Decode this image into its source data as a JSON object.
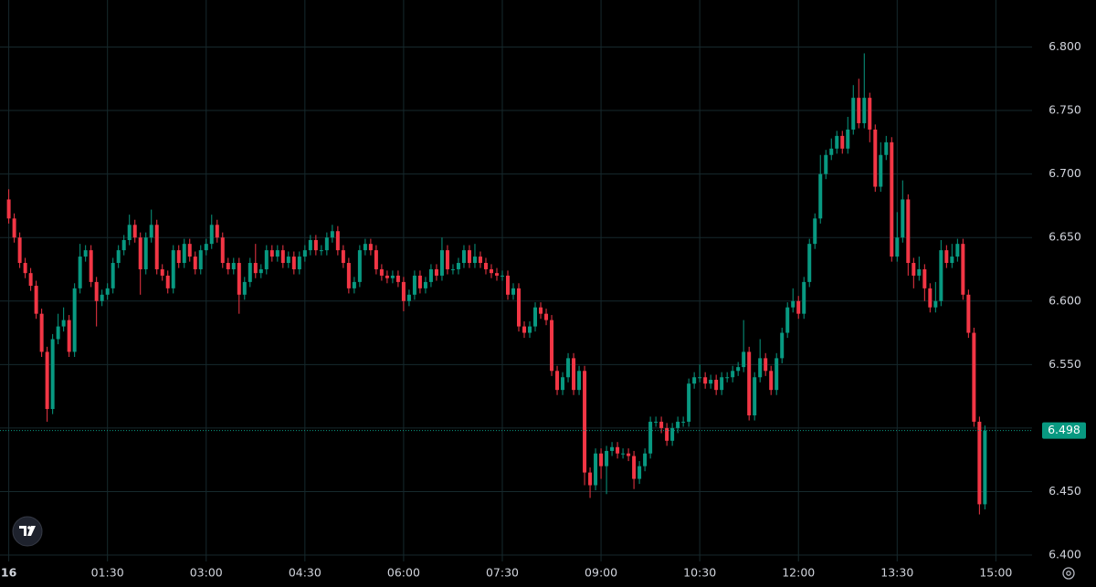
{
  "chart_data": {
    "type": "candlestick",
    "x": [
      0,
      5,
      10,
      15,
      20,
      25,
      30,
      35,
      40,
      45,
      50,
      55,
      60,
      65,
      70,
      75,
      80,
      85,
      90,
      95,
      100,
      105,
      110,
      115,
      120,
      125,
      130,
      135,
      140,
      145,
      150,
      155,
      160,
      165,
      170,
      175,
      180,
      185,
      190,
      195,
      200,
      205,
      210,
      215,
      220,
      225,
      230,
      235,
      240,
      245,
      250,
      255,
      260,
      265,
      270,
      275,
      280,
      285,
      290,
      295,
      300,
      305,
      310,
      315,
      320,
      325,
      330,
      335,
      340,
      345,
      350,
      355,
      360,
      365,
      370,
      375,
      380,
      385,
      390,
      395,
      400,
      405,
      410,
      415,
      420,
      425,
      430,
      435,
      440,
      445,
      450,
      455,
      460,
      465,
      470,
      475,
      480,
      485,
      490,
      495,
      500,
      505,
      510,
      515,
      520,
      525,
      530,
      535,
      540,
      545,
      550,
      555,
      560,
      565,
      570,
      575,
      580,
      585,
      590,
      595,
      600,
      605,
      610,
      615,
      620,
      625,
      630,
      635,
      640,
      645,
      650,
      655,
      660,
      665,
      670,
      675,
      680,
      685,
      690,
      695,
      700,
      705,
      710,
      715,
      720,
      725,
      730,
      735,
      740,
      745,
      750,
      755,
      760,
      765,
      770,
      775,
      780,
      785,
      790,
      795,
      800,
      805,
      810,
      815,
      820,
      825,
      830,
      835,
      840,
      845,
      850,
      855,
      860,
      865,
      870,
      875,
      880,
      885,
      890
    ],
    "open": [
      6.68,
      6.665,
      6.65,
      6.63,
      6.622,
      6.612,
      6.59,
      6.56,
      6.515,
      6.57,
      6.58,
      6.585,
      6.56,
      6.61,
      6.635,
      6.64,
      6.615,
      6.6,
      6.605,
      6.61,
      6.63,
      6.64,
      6.648,
      6.66,
      6.65,
      6.625,
      6.65,
      6.66,
      6.625,
      6.62,
      6.61,
      6.64,
      6.63,
      6.645,
      6.635,
      6.625,
      6.64,
      6.645,
      6.66,
      6.65,
      6.63,
      6.625,
      6.63,
      6.605,
      6.615,
      6.63,
      6.622,
      6.625,
      6.64,
      6.635,
      6.64,
      6.63,
      6.635,
      6.625,
      6.635,
      6.64,
      6.648,
      6.64,
      6.64,
      6.65,
      6.655,
      6.64,
      6.63,
      6.61,
      6.615,
      6.64,
      6.645,
      6.64,
      6.625,
      6.62,
      6.618,
      6.62,
      6.615,
      6.6,
      6.605,
      6.62,
      6.61,
      6.615,
      6.625,
      6.62,
      6.64,
      6.625,
      6.625,
      6.63,
      6.64,
      6.63,
      6.635,
      6.63,
      6.625,
      6.622,
      6.62,
      6.62,
      6.605,
      6.61,
      6.58,
      6.575,
      6.58,
      6.595,
      6.59,
      6.585,
      6.545,
      6.53,
      6.54,
      6.555,
      6.53,
      6.545,
      6.465,
      6.455,
      6.48,
      6.47,
      6.482,
      6.485,
      6.48,
      6.48,
      6.478,
      6.46,
      6.47,
      6.48,
      6.505,
      6.505,
      6.5,
      6.49,
      6.5,
      6.505,
      6.505,
      6.535,
      6.54,
      6.54,
      6.535,
      6.538,
      6.53,
      6.54,
      6.54,
      6.545,
      6.548,
      6.56,
      6.51,
      6.54,
      6.555,
      6.545,
      6.53,
      6.555,
      6.575,
      6.595,
      6.6,
      6.59,
      6.615,
      6.645,
      6.665,
      6.7,
      6.715,
      6.72,
      6.73,
      6.72,
      6.735,
      6.76,
      6.74,
      6.76,
      6.735,
      6.69,
      6.715,
      6.725,
      6.635,
      6.65,
      6.68,
      6.63,
      6.62,
      6.625,
      6.61,
      6.595,
      6.6,
      6.64,
      6.63,
      6.635,
      6.645,
      6.605,
      6.575,
      6.505,
      6.44
    ],
    "high": [
      6.688,
      6.669,
      6.654,
      6.634,
      6.626,
      6.616,
      6.594,
      6.564,
      6.574,
      6.59,
      6.595,
      6.589,
      6.614,
      6.645,
      6.644,
      6.644,
      6.619,
      6.609,
      6.614,
      6.634,
      6.644,
      6.652,
      6.668,
      6.664,
      6.654,
      6.654,
      6.672,
      6.664,
      6.629,
      6.624,
      6.644,
      6.644,
      6.649,
      6.649,
      6.639,
      6.644,
      6.649,
      6.668,
      6.664,
      6.654,
      6.634,
      6.634,
      6.634,
      6.619,
      6.634,
      6.645,
      6.629,
      6.644,
      6.644,
      6.644,
      6.644,
      6.639,
      6.639,
      6.639,
      6.644,
      6.652,
      6.652,
      6.644,
      6.654,
      6.66,
      6.659,
      6.644,
      6.634,
      6.619,
      6.644,
      6.649,
      6.649,
      6.644,
      6.629,
      6.624,
      6.624,
      6.624,
      6.619,
      6.609,
      6.624,
      6.624,
      6.619,
      6.629,
      6.629,
      6.65,
      6.644,
      6.629,
      6.634,
      6.644,
      6.644,
      6.645,
      6.639,
      6.634,
      6.629,
      6.626,
      6.624,
      6.624,
      6.614,
      6.614,
      6.584,
      6.584,
      6.599,
      6.599,
      6.594,
      6.589,
      6.549,
      6.544,
      6.559,
      6.559,
      6.549,
      6.549,
      6.469,
      6.484,
      6.484,
      6.486,
      6.489,
      6.489,
      6.484,
      6.484,
      6.482,
      6.474,
      6.484,
      6.509,
      6.509,
      6.509,
      6.504,
      6.504,
      6.509,
      6.509,
      6.539,
      6.544,
      6.55,
      6.544,
      6.542,
      6.542,
      6.544,
      6.544,
      6.549,
      6.552,
      6.585,
      6.564,
      6.544,
      6.57,
      6.559,
      6.549,
      6.559,
      6.579,
      6.599,
      6.61,
      6.604,
      6.619,
      6.649,
      6.669,
      6.715,
      6.719,
      6.728,
      6.734,
      6.734,
      6.745,
      6.77,
      6.775,
      6.795,
      6.764,
      6.739,
      6.725,
      6.73,
      6.729,
      6.67,
      6.695,
      6.684,
      6.634,
      6.635,
      6.629,
      6.614,
      6.615,
      6.648,
      6.644,
      6.645,
      6.649,
      6.649,
      6.609,
      6.579,
      6.509,
      6.502
    ],
    "low": [
      6.661,
      6.646,
      6.626,
      6.618,
      6.608,
      6.586,
      6.556,
      6.505,
      6.511,
      6.566,
      6.576,
      6.556,
      6.556,
      6.606,
      6.631,
      6.611,
      6.58,
      6.596,
      6.601,
      6.606,
      6.626,
      6.636,
      6.644,
      6.646,
      6.605,
      6.621,
      6.646,
      6.621,
      6.616,
      6.606,
      6.606,
      6.626,
      6.626,
      6.631,
      6.621,
      6.621,
      6.636,
      6.641,
      6.646,
      6.626,
      6.621,
      6.621,
      6.59,
      6.601,
      6.611,
      6.618,
      6.618,
      6.621,
      6.631,
      6.631,
      6.626,
      6.626,
      6.621,
      6.621,
      6.631,
      6.636,
      6.636,
      6.636,
      6.636,
      6.646,
      6.636,
      6.626,
      6.606,
      6.606,
      6.611,
      6.636,
      6.636,
      6.621,
      6.616,
      6.614,
      6.614,
      6.611,
      6.592,
      6.596,
      6.601,
      6.606,
      6.606,
      6.611,
      6.616,
      6.616,
      6.621,
      6.621,
      6.621,
      6.626,
      6.626,
      6.626,
      6.626,
      6.621,
      6.618,
      6.616,
      6.616,
      6.601,
      6.601,
      6.576,
      6.571,
      6.571,
      6.576,
      6.586,
      6.581,
      6.541,
      6.526,
      6.526,
      6.536,
      6.526,
      6.526,
      6.455,
      6.445,
      6.451,
      6.46,
      6.448,
      6.478,
      6.476,
      6.476,
      6.474,
      6.452,
      6.456,
      6.466,
      6.476,
      6.501,
      6.496,
      6.486,
      6.486,
      6.496,
      6.501,
      6.501,
      6.531,
      6.536,
      6.531,
      6.531,
      6.526,
      6.526,
      6.536,
      6.536,
      6.541,
      6.544,
      6.506,
      6.506,
      6.536,
      6.541,
      6.526,
      6.526,
      6.551,
      6.571,
      6.591,
      6.586,
      6.586,
      6.611,
      6.641,
      6.661,
      6.696,
      6.711,
      6.716,
      6.716,
      6.716,
      6.731,
      6.736,
      6.736,
      6.725,
      6.686,
      6.686,
      6.711,
      6.631,
      6.631,
      6.646,
      6.62,
      6.61,
      6.616,
      6.6,
      6.591,
      6.591,
      6.596,
      6.626,
      6.626,
      6.631,
      6.601,
      6.571,
      6.501,
      6.432,
      6.436
    ],
    "close": [
      6.665,
      6.65,
      6.63,
      6.622,
      6.612,
      6.59,
      6.56,
      6.515,
      6.57,
      6.58,
      6.585,
      6.56,
      6.61,
      6.635,
      6.64,
      6.615,
      6.6,
      6.605,
      6.61,
      6.63,
      6.64,
      6.648,
      6.66,
      6.65,
      6.625,
      6.65,
      6.66,
      6.625,
      6.62,
      6.61,
      6.64,
      6.63,
      6.645,
      6.635,
      6.625,
      6.64,
      6.645,
      6.66,
      6.65,
      6.63,
      6.625,
      6.63,
      6.605,
      6.615,
      6.63,
      6.622,
      6.625,
      6.64,
      6.635,
      6.64,
      6.63,
      6.635,
      6.625,
      6.635,
      6.64,
      6.648,
      6.64,
      6.64,
      6.65,
      6.655,
      6.64,
      6.63,
      6.61,
      6.615,
      6.64,
      6.645,
      6.64,
      6.625,
      6.62,
      6.618,
      6.62,
      6.615,
      6.6,
      6.605,
      6.62,
      6.61,
      6.615,
      6.625,
      6.62,
      6.64,
      6.625,
      6.625,
      6.63,
      6.64,
      6.63,
      6.635,
      6.63,
      6.625,
      6.622,
      6.62,
      6.62,
      6.605,
      6.61,
      6.58,
      6.575,
      6.58,
      6.595,
      6.59,
      6.585,
      6.545,
      6.53,
      6.54,
      6.555,
      6.53,
      6.545,
      6.465,
      6.455,
      6.48,
      6.47,
      6.482,
      6.485,
      6.48,
      6.48,
      6.478,
      6.46,
      6.47,
      6.48,
      6.505,
      6.505,
      6.5,
      6.49,
      6.5,
      6.505,
      6.505,
      6.535,
      6.54,
      6.54,
      6.535,
      6.538,
      6.53,
      6.54,
      6.54,
      6.545,
      6.548,
      6.56,
      6.51,
      6.54,
      6.555,
      6.545,
      6.53,
      6.555,
      6.575,
      6.595,
      6.6,
      6.59,
      6.615,
      6.645,
      6.665,
      6.7,
      6.715,
      6.72,
      6.73,
      6.72,
      6.735,
      6.76,
      6.74,
      6.76,
      6.735,
      6.69,
      6.715,
      6.725,
      6.635,
      6.65,
      6.68,
      6.63,
      6.62,
      6.625,
      6.61,
      6.595,
      6.6,
      6.64,
      6.63,
      6.635,
      6.645,
      6.605,
      6.575,
      6.505,
      6.44,
      6.498
    ],
    "up_color": "#089981",
    "down_color": "#f23645",
    "xlim": [
      -8,
      933
    ],
    "ylim": [
      6.395,
      6.837
    ],
    "xticks": [
      {
        "value": 0,
        "label": "16"
      },
      {
        "value": 90,
        "label": "01:30"
      },
      {
        "value": 180,
        "label": "03:00"
      },
      {
        "value": 270,
        "label": "04:30"
      },
      {
        "value": 360,
        "label": "06:00"
      },
      {
        "value": 450,
        "label": "07:30"
      },
      {
        "value": 540,
        "label": "09:00"
      },
      {
        "value": 630,
        "label": "10:30"
      },
      {
        "value": 720,
        "label": "12:00"
      },
      {
        "value": 810,
        "label": "13:30"
      },
      {
        "value": 900,
        "label": "15:00"
      }
    ],
    "yticks": [
      {
        "value": 6.4,
        "label": "6.400"
      },
      {
        "value": 6.45,
        "label": "6.450"
      },
      {
        "value": 6.5,
        "label": "6.500"
      },
      {
        "value": 6.55,
        "label": "6.550"
      },
      {
        "value": 6.6,
        "label": "6.600"
      },
      {
        "value": 6.65,
        "label": "6.650"
      },
      {
        "value": 6.7,
        "label": "6.700"
      },
      {
        "value": 6.75,
        "label": "6.750"
      },
      {
        "value": 6.8,
        "label": "6.800"
      }
    ],
    "grid": true
  }
}
